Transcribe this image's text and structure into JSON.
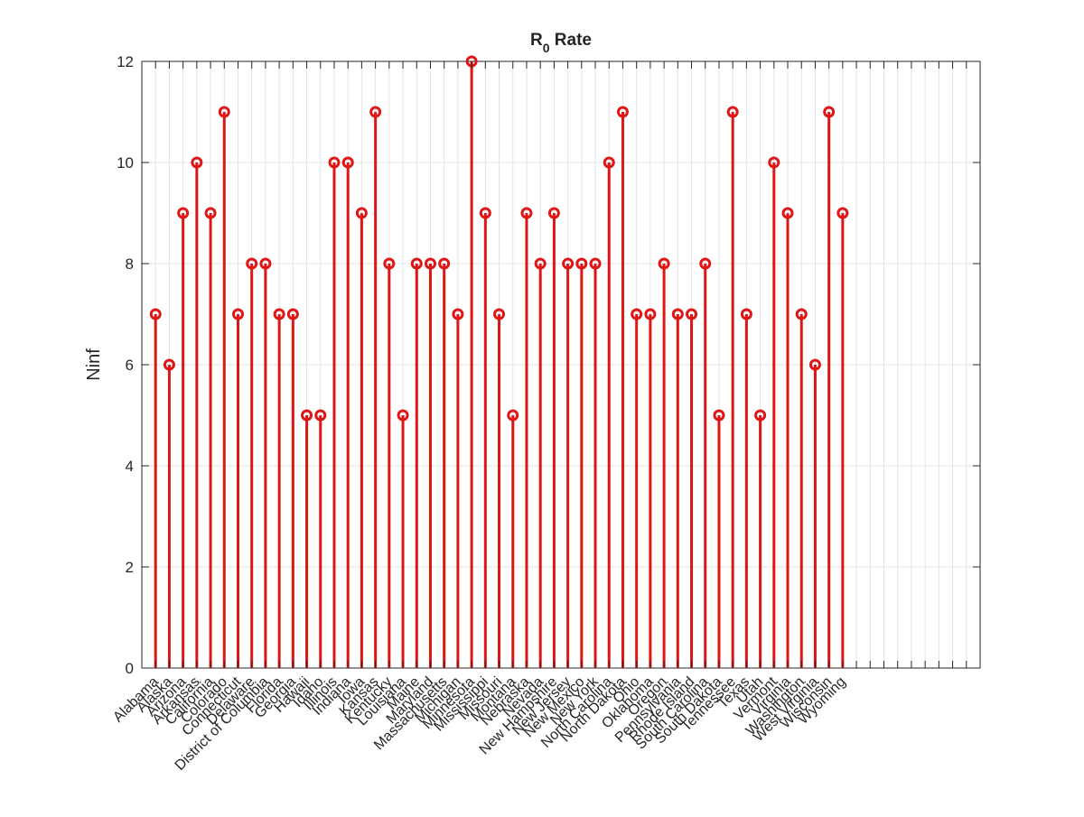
{
  "chart_data": {
    "type": "stem",
    "title": "R",
    "title_subscript": "0",
    "title_suffix": " Rate",
    "xlabel": "",
    "ylabel": "Ninf",
    "ylim": [
      0,
      12
    ],
    "yticks": [
      0,
      2,
      4,
      6,
      8,
      10,
      12
    ],
    "grid": true,
    "color": "#E01515",
    "categories": [
      "Alabama",
      "Alaska",
      "Arizona",
      "Arkansas",
      "California",
      "Colorado",
      "Connecticut",
      "Delaware",
      "District of Columbia",
      "Florida",
      "Georgia",
      "Hawaii",
      "Idaho",
      "Illinois",
      "Indiana",
      "Iowa",
      "Kansas",
      "Kentucky",
      "Louisiana",
      "Maine",
      "Maryland",
      "Massachusetts",
      "Michigan",
      "Minnesota",
      "Mississippi",
      "Missouri",
      "Montana",
      "Nebraska",
      "Nevada",
      "New Hampshire",
      "New Jersey",
      "New Mexico",
      "New York",
      "North Carolina",
      "North Dakota",
      "Ohio",
      "Oklahoma",
      "Oregon",
      "Pennsylvania",
      "Rhode Island",
      "South Carolina",
      "South Dakota",
      "Tennessee",
      "Texas",
      "Utah",
      "Vermont",
      "Virginia",
      "Washington",
      "West Virginia",
      "Wisconsin",
      "Wyoming"
    ],
    "values": [
      7,
      6,
      9,
      10,
      9,
      11,
      7,
      8,
      8,
      7,
      7,
      5,
      5,
      10,
      10,
      9,
      11,
      8,
      5,
      8,
      8,
      8,
      7,
      12,
      9,
      7,
      5,
      9,
      8,
      9,
      8,
      8,
      8,
      10,
      11,
      7,
      7,
      8,
      7,
      7,
      8,
      5,
      11,
      7,
      5,
      10,
      9,
      7,
      6,
      11,
      9
    ],
    "x_axis_count": 60
  }
}
